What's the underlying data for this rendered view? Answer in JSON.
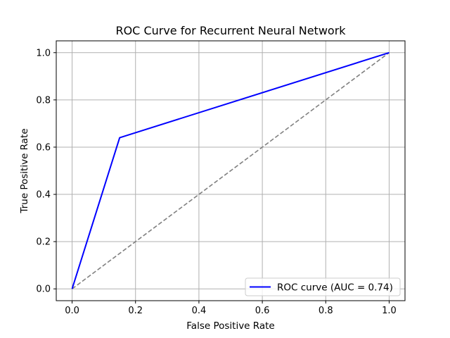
{
  "chart_data": {
    "type": "line",
    "title": "ROC Curve for Recurrent Neural Network",
    "xlabel": "False Positive Rate",
    "ylabel": "True Positive Rate",
    "xlim": [
      -0.05,
      1.05
    ],
    "ylim": [
      -0.05,
      1.05
    ],
    "xticks": [
      0.0,
      0.2,
      0.4,
      0.6,
      0.8,
      1.0
    ],
    "xtick_labels": [
      "0.0",
      "0.2",
      "0.4",
      "0.6",
      "0.8",
      "1.0"
    ],
    "yticks": [
      0.0,
      0.2,
      0.4,
      0.6,
      0.8,
      1.0
    ],
    "ytick_labels": [
      "0.0",
      "0.2",
      "0.4",
      "0.6",
      "0.8",
      "1.0"
    ],
    "grid": true,
    "legend_position": "lower-right",
    "series": [
      {
        "name": "ROC curve (AUC = 0.74)",
        "color": "#0000ff",
        "style": "solid",
        "x": [
          0.0,
          0.15,
          1.0
        ],
        "y": [
          0.0,
          0.64,
          1.0
        ]
      },
      {
        "color": "#808080",
        "style": "dashed",
        "x": [
          0.0,
          1.0
        ],
        "y": [
          0.0,
          1.0
        ]
      }
    ]
  }
}
